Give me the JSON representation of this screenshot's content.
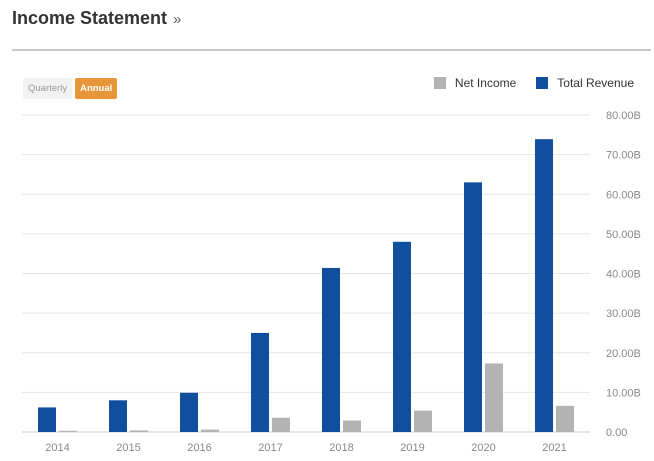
{
  "header": {
    "title": "Income Statement",
    "more": "»"
  },
  "period_toggle": {
    "quarterly": "Quarterly",
    "annual": "Annual",
    "selected": "Annual"
  },
  "chart_data": {
    "type": "bar",
    "categories": [
      "2014",
      "2015",
      "2016",
      "2017",
      "2018",
      "2019",
      "2020",
      "2021"
    ],
    "series": [
      {
        "name": "Total Revenue",
        "color": "#0f4f9e",
        "values": [
          6.2,
          8.0,
          9.9,
          25.0,
          41.4,
          48.0,
          63.0,
          73.9
        ]
      },
      {
        "name": "Net Income",
        "color": "#b3b3b3",
        "values": [
          0.3,
          0.4,
          0.6,
          3.6,
          2.9,
          5.4,
          17.3,
          6.6
        ]
      }
    ],
    "y_tick_labels": [
      "0.00",
      "10.00B",
      "20.00B",
      "30.00B",
      "40.00B",
      "50.00B",
      "60.00B",
      "70.00B",
      "80.00B"
    ],
    "ylim": [
      0,
      80
    ],
    "y_unit": "B",
    "grid": true,
    "legend_position": "top-right",
    "y_axis_side": "right"
  }
}
